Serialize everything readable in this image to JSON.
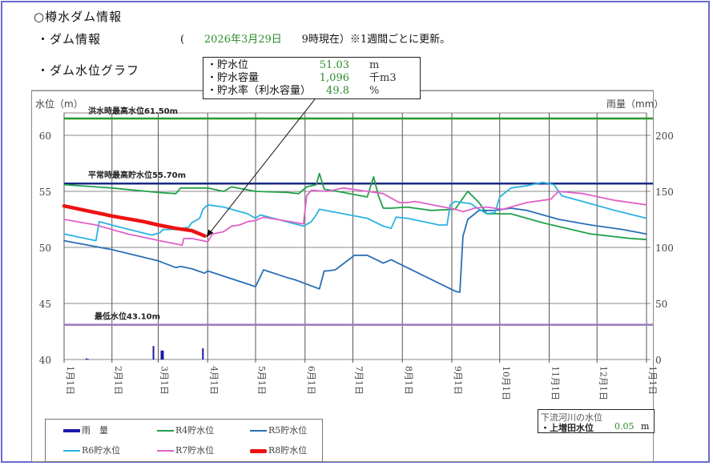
{
  "header": {
    "title": "○樽水ダム情報",
    "dam_info_label": "・ダム情報",
    "date_line_open": "(",
    "date": "2026年3月29日",
    "date_line_rest": "9時現在）※1週間ごとに更新。",
    "graph_label": "・ダム水位グラフ"
  },
  "infobox": {
    "rows": [
      {
        "label": "・貯水位",
        "value": "51.03",
        "unit": "m"
      },
      {
        "label": "・貯水容量",
        "value": "1,096",
        "unit": "千m3"
      },
      {
        "label": "・貯水率（利水容量）",
        "value": "49.8",
        "unit": "%"
      }
    ]
  },
  "river": {
    "header": "下流河川の水位",
    "label": "・上増田水位",
    "value": "0.05",
    "unit": "m"
  },
  "colors": {
    "rain": "#1a1aa8",
    "R4": "#22a04a",
    "R5": "#2a6fb5",
    "R6": "#2ab3e0",
    "R7": "#e060c8",
    "R8": "#ee1111",
    "flood_line": "#2a9a2a",
    "normal_line": "#1a2a80",
    "min_line": "#9a7ab8"
  },
  "chart_data": {
    "type": "line",
    "title": "ダム水位グラフ",
    "xlabel": "",
    "ylabel": "水位（m）",
    "y2label": "雨量（mm）",
    "ylim": [
      40,
      62
    ],
    "y2lim": [
      0,
      200
    ],
    "yticks": [
      40,
      45,
      50,
      55,
      60
    ],
    "y2ticks": [
      0,
      50,
      100,
      150,
      200
    ],
    "grid": true,
    "legend_position": "bottom-left",
    "x_tick_labels": [
      "1月1日",
      "2月1日",
      "3月1日",
      "4月1日",
      "5月1日",
      "6月1日",
      "7月1日",
      "8月1日",
      "9月1日",
      "10月1日",
      "11月1日",
      "12月1日",
      "1月1日"
    ],
    "reference_lines": [
      {
        "label": "洪水時最高水位61.50m",
        "value": 61.5
      },
      {
        "label": "平常時最高貯水位55.70m",
        "value": 55.7
      },
      {
        "label": "最低水位43.10m",
        "value": 43.1
      }
    ],
    "legend": [
      "雨　量",
      "R4貯水位",
      "R5貯水位",
      "R6貯水位",
      "R7貯水位",
      "R8貯水位"
    ],
    "x_days": [
      0,
      30,
      59,
      90,
      120,
      151,
      181,
      212,
      243,
      273,
      304,
      334,
      365
    ],
    "series": [
      {
        "name": "R4貯水位",
        "points": [
          [
            0,
            55.6
          ],
          [
            30,
            55.3
          ],
          [
            59,
            54.9
          ],
          [
            70,
            54.8
          ],
          [
            73,
            55.3
          ],
          [
            90,
            55.3
          ],
          [
            100,
            55.0
          ],
          [
            105,
            55.4
          ],
          [
            120,
            55.0
          ],
          [
            140,
            54.9
          ],
          [
            147,
            54.8
          ],
          [
            152,
            55.4
          ],
          [
            158,
            55.6
          ],
          [
            160,
            56.6
          ],
          [
            163,
            55.2
          ],
          [
            175,
            54.9
          ],
          [
            190,
            54.5
          ],
          [
            194,
            56.3
          ],
          [
            197,
            54.6
          ],
          [
            200,
            53.5
          ],
          [
            205,
            53.5
          ],
          [
            215,
            53.6
          ],
          [
            230,
            53.3
          ],
          [
            245,
            53.4
          ],
          [
            253,
            55.0
          ],
          [
            260,
            54.0
          ],
          [
            265,
            53.0
          ],
          [
            280,
            53.0
          ],
          [
            300,
            52.2
          ],
          [
            330,
            51.2
          ],
          [
            355,
            50.8
          ],
          [
            365,
            50.7
          ]
        ]
      },
      {
        "name": "R5貯水位",
        "points": [
          [
            0,
            50.6
          ],
          [
            30,
            49.8
          ],
          [
            59,
            48.8
          ],
          [
            70,
            48.2
          ],
          [
            73,
            48.3
          ],
          [
            80,
            48.1
          ],
          [
            88,
            47.7
          ],
          [
            90,
            47.9
          ],
          [
            120,
            46.5
          ],
          [
            125,
            48.0
          ],
          [
            140,
            47.3
          ],
          [
            145,
            47.1
          ],
          [
            160,
            46.3
          ],
          [
            163,
            47.9
          ],
          [
            165,
            47.9
          ],
          [
            170,
            48.0
          ],
          [
            182,
            49.3
          ],
          [
            190,
            49.3
          ],
          [
            200,
            48.6
          ],
          [
            205,
            48.9
          ],
          [
            245,
            46.1
          ],
          [
            248,
            46.0
          ],
          [
            250,
            51.0
          ],
          [
            253,
            52.5
          ],
          [
            260,
            53.3
          ],
          [
            270,
            53.3
          ],
          [
            280,
            53.5
          ],
          [
            290,
            53.3
          ],
          [
            310,
            52.5
          ],
          [
            330,
            52.0
          ],
          [
            350,
            51.6
          ],
          [
            365,
            51.2
          ]
        ]
      },
      {
        "name": "R6貯水位",
        "points": [
          [
            0,
            51.2
          ],
          [
            20,
            50.6
          ],
          [
            22,
            52.3
          ],
          [
            35,
            51.8
          ],
          [
            55,
            51.1
          ],
          [
            60,
            51.3
          ],
          [
            62,
            51.6
          ],
          [
            70,
            51.6
          ],
          [
            78,
            51.8
          ],
          [
            80,
            52.2
          ],
          [
            85,
            52.6
          ],
          [
            87,
            53.4
          ],
          [
            90,
            53.8
          ],
          [
            100,
            53.6
          ],
          [
            115,
            53.0
          ],
          [
            120,
            52.6
          ],
          [
            123,
            52.9
          ],
          [
            150,
            51.9
          ],
          [
            155,
            52.3
          ],
          [
            158,
            52.9
          ],
          [
            160,
            53.4
          ],
          [
            175,
            53.0
          ],
          [
            190,
            52.6
          ],
          [
            200,
            51.9
          ],
          [
            205,
            51.7
          ],
          [
            208,
            52.7
          ],
          [
            215,
            52.6
          ],
          [
            225,
            52.3
          ],
          [
            235,
            52.0
          ],
          [
            240,
            52.0
          ],
          [
            242,
            53.8
          ],
          [
            245,
            54.1
          ],
          [
            255,
            53.9
          ],
          [
            260,
            53.4
          ],
          [
            265,
            53.0
          ],
          [
            270,
            53.1
          ],
          [
            273,
            54.5
          ],
          [
            280,
            55.3
          ],
          [
            290,
            55.5
          ],
          [
            300,
            55.8
          ],
          [
            307,
            55.6
          ],
          [
            312,
            54.6
          ],
          [
            325,
            54.1
          ],
          [
            345,
            53.3
          ],
          [
            365,
            52.6
          ]
        ]
      },
      {
        "name": "R7貯水位",
        "points": [
          [
            0,
            52.5
          ],
          [
            20,
            52.0
          ],
          [
            40,
            51.2
          ],
          [
            60,
            50.6
          ],
          [
            74,
            50.2
          ],
          [
            75,
            50.8
          ],
          [
            80,
            50.8
          ],
          [
            90,
            50.5
          ],
          [
            93,
            51.2
          ],
          [
            100,
            51.4
          ],
          [
            105,
            51.9
          ],
          [
            110,
            52.0
          ],
          [
            115,
            52.3
          ],
          [
            120,
            52.4
          ],
          [
            125,
            52.7
          ],
          [
            150,
            52.1
          ],
          [
            152,
            54.6
          ],
          [
            155,
            55.1
          ],
          [
            165,
            55.0
          ],
          [
            175,
            55.3
          ],
          [
            190,
            55.0
          ],
          [
            200,
            54.8
          ],
          [
            210,
            54.0
          ],
          [
            215,
            54.0
          ],
          [
            220,
            54.1
          ],
          [
            245,
            53.4
          ],
          [
            250,
            53.2
          ],
          [
            253,
            53.3
          ],
          [
            257,
            53.5
          ],
          [
            265,
            53.6
          ],
          [
            275,
            53.4
          ],
          [
            280,
            53.6
          ],
          [
            290,
            54.0
          ],
          [
            300,
            54.2
          ],
          [
            305,
            54.3
          ],
          [
            307,
            54.6
          ],
          [
            310,
            55.0
          ],
          [
            325,
            54.8
          ],
          [
            345,
            54.2
          ],
          [
            365,
            53.8
          ]
        ]
      },
      {
        "name": "R8貯水位",
        "points": [
          [
            0,
            53.7
          ],
          [
            30,
            52.8
          ],
          [
            50,
            52.3
          ],
          [
            59,
            52.0
          ],
          [
            70,
            51.7
          ],
          [
            80,
            51.5
          ],
          [
            88,
            51.03
          ]
        ]
      },
      {
        "name": "雨　量",
        "type": "bar",
        "points": [
          [
            14,
            1
          ],
          [
            15,
            0.5
          ],
          [
            56,
            12
          ],
          [
            61,
            8
          ],
          [
            62,
            8
          ],
          [
            87,
            10
          ]
        ]
      }
    ]
  }
}
